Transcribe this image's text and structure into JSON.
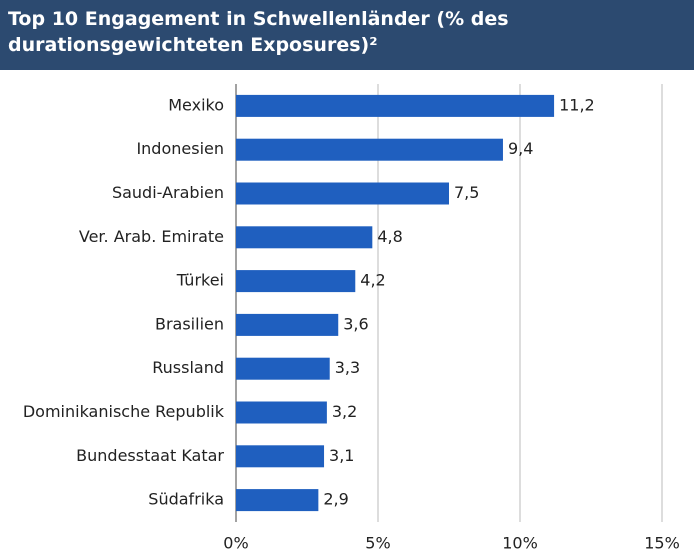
{
  "chart_data": {
    "type": "bar",
    "title": "Top 10 Engagement in Schwellenländer (% des durationsgewichteten Exposures)²",
    "categories": [
      "Mexiko",
      "Indonesien",
      "Saudi-Arabien",
      "Ver. Arab. Emirate",
      "Türkei",
      "Brasilien",
      "Russland",
      "Dominikanische Republik",
      "Bundesstaat Katar",
      "Südafrika"
    ],
    "values": [
      11.2,
      9.4,
      7.5,
      4.8,
      4.2,
      3.6,
      3.3,
      3.2,
      3.1,
      2.9
    ],
    "value_labels": [
      "11,2",
      "9,4",
      "7,5",
      "4,8",
      "4,2",
      "3,6",
      "3,3",
      "3,2",
      "3,1",
      "2,9"
    ],
    "color": "#1f5fbf",
    "xlim": [
      0,
      15
    ],
    "xticks": [
      {
        "value": 0,
        "label": "0%"
      },
      {
        "value": 5,
        "label": "5%"
      },
      {
        "value": 10,
        "label": "10%"
      },
      {
        "value": 15,
        "label": "15%"
      }
    ],
    "grid": true
  }
}
